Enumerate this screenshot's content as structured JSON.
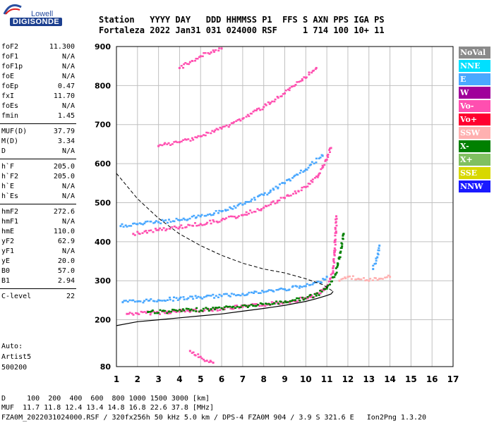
{
  "logo": {
    "top": "Lowell",
    "main": "DIGISONDE"
  },
  "header": {
    "line1": "Station   YYYY DAY   DDD HHMMSS P1  FFS S AXN PPS IGA PS",
    "line2": "Fortaleza 2022 Jan31 031 024000 RSF     1 714 100 10+ 11"
  },
  "params": [
    {
      "k": "foF2",
      "v": "11.300"
    },
    {
      "k": "foF1",
      "v": "N/A"
    },
    {
      "k": "foF1p",
      "v": "N/A"
    },
    {
      "k": "foE",
      "v": "N/A"
    },
    {
      "k": "foEp",
      "v": "0.47"
    },
    {
      "k": "fxI",
      "v": "11.70"
    },
    {
      "k": "foEs",
      "v": "N/A"
    },
    {
      "k": "fmin",
      "v": "1.45"
    },
    {
      "k": "MUF(D)",
      "v": "37.79"
    },
    {
      "k": "M(D)",
      "v": "3.34"
    },
    {
      "k": "D",
      "v": "N/A"
    },
    {
      "k": "h`F",
      "v": "205.0"
    },
    {
      "k": "h`F2",
      "v": "205.0"
    },
    {
      "k": "h`E",
      "v": "N/A"
    },
    {
      "k": "h`Es",
      "v": "N/A"
    },
    {
      "k": "hmF2",
      "v": "272.6"
    },
    {
      "k": "hmF1",
      "v": "N/A"
    },
    {
      "k": "hmE",
      "v": "110.0"
    },
    {
      "k": "yF2",
      "v": "62.9"
    },
    {
      "k": "yF1",
      "v": "N/A"
    },
    {
      "k": "yE",
      "v": "20.0"
    },
    {
      "k": "B0",
      "v": "57.0"
    },
    {
      "k": "B1",
      "v": "2.94"
    },
    {
      "k": "C-level",
      "v": "22"
    }
  ],
  "auto": {
    "line1": "Auto:",
    "line2": "Artist5",
    "line3": "500200"
  },
  "footer": {
    "line1": "D     100  200  400  600  800 1000 1500 3000 [km]",
    "line2": "MUF  11.7 11.8 12.4 13.4 14.8 16.8 22.6 37.8 [MHz]",
    "line3": "FZA0M_2022031024000.RSF / 320fx256h 50 kHz 5.0 km / DPS-4 FZA0M 904 / 3.9 S 321.6 E   Ion2Png 1.3.20"
  },
  "legend": [
    {
      "label": "NoVal",
      "color": "#8a8a8a"
    },
    {
      "label": "NNE",
      "color": "#00e0ff"
    },
    {
      "label": "E",
      "color": "#4aa8ff"
    },
    {
      "label": "W",
      "color": "#a0009a"
    },
    {
      "label": "Vo-",
      "color": "#ff4fb0"
    },
    {
      "label": "Vo+",
      "color": "#ff0030"
    },
    {
      "label": "SSW",
      "color": "#ffb0b0"
    },
    {
      "label": "X-",
      "color": "#008000"
    },
    {
      "label": "X+",
      "color": "#80c060"
    },
    {
      "label": "SSE",
      "color": "#d8d800"
    },
    {
      "label": "NNW",
      "color": "#1a1aff"
    }
  ],
  "chart_data": {
    "type": "scatter",
    "title": "",
    "xlabel": "",
    "ylabel": "",
    "xlim": [
      1,
      17
    ],
    "ylim": [
      80,
      900
    ],
    "xticks": [
      1,
      2,
      3,
      4,
      5,
      6,
      7,
      8,
      9,
      10,
      11,
      12,
      13,
      14,
      15,
      16,
      17
    ],
    "yticks": [
      80,
      200,
      300,
      400,
      500,
      600,
      700,
      800,
      900
    ],
    "grid": true,
    "series": [
      {
        "color": "#ff4fb0",
        "points": [
          [
            1.5,
            215
          ],
          [
            2,
            216
          ],
          [
            3,
            218
          ],
          [
            4,
            221
          ],
          [
            5,
            224
          ],
          [
            6,
            228
          ],
          [
            7,
            233
          ],
          [
            8,
            238
          ],
          [
            9,
            245
          ],
          [
            10,
            255
          ],
          [
            10.7,
            268
          ],
          [
            11,
            285
          ],
          [
            11.3,
            320
          ],
          [
            11.4,
            400
          ],
          [
            11.45,
            465
          ]
        ]
      },
      {
        "color": "#008000",
        "points": [
          [
            2.5,
            220
          ],
          [
            3.5,
            221
          ],
          [
            4.5,
            224
          ],
          [
            5.5,
            227
          ],
          [
            6.5,
            232
          ],
          [
            7.5,
            236
          ],
          [
            8.5,
            242
          ],
          [
            9.5,
            250
          ],
          [
            10.5,
            262
          ],
          [
            11,
            280
          ],
          [
            11.4,
            315
          ],
          [
            11.6,
            360
          ],
          [
            11.8,
            420
          ]
        ]
      },
      {
        "color": "#4aa8ff",
        "points": [
          [
            1.3,
            245
          ],
          [
            2,
            247
          ],
          [
            3,
            250
          ],
          [
            4,
            254
          ],
          [
            5,
            257
          ],
          [
            6,
            261
          ],
          [
            7,
            266
          ],
          [
            8,
            271
          ],
          [
            9,
            278
          ],
          [
            10,
            286
          ],
          [
            10.7,
            296
          ],
          [
            11,
            310
          ]
        ]
      },
      {
        "color": "#ff4fb0",
        "points": [
          [
            1.8,
            420
          ],
          [
            3,
            430
          ],
          [
            4,
            437
          ],
          [
            5,
            445
          ],
          [
            6,
            455
          ],
          [
            7,
            468
          ],
          [
            8,
            487
          ],
          [
            9,
            512
          ],
          [
            10,
            540
          ],
          [
            10.6,
            570
          ],
          [
            11,
            610
          ],
          [
            11.2,
            640
          ]
        ]
      },
      {
        "color": "#4aa8ff",
        "points": [
          [
            1.2,
            440
          ],
          [
            2,
            445
          ],
          [
            3,
            450
          ],
          [
            4,
            455
          ],
          [
            5,
            465
          ],
          [
            6,
            478
          ],
          [
            7,
            495
          ],
          [
            8,
            520
          ],
          [
            9,
            550
          ],
          [
            10,
            585
          ],
          [
            10.8,
            620
          ]
        ]
      },
      {
        "color": "#ff4fb0",
        "points": [
          [
            3,
            645
          ],
          [
            4,
            655
          ],
          [
            5,
            670
          ],
          [
            6,
            690
          ],
          [
            7,
            715
          ],
          [
            8,
            745
          ],
          [
            9,
            780
          ],
          [
            10,
            820
          ],
          [
            10.5,
            845
          ]
        ]
      },
      {
        "color": "#ff4fb0",
        "points": [
          [
            4,
            845
          ],
          [
            4.5,
            860
          ],
          [
            5,
            875
          ],
          [
            5.5,
            885
          ],
          [
            6,
            895
          ]
        ]
      },
      {
        "color": "#ffb0b0",
        "points": [
          [
            11.6,
            300
          ],
          [
            12,
            310
          ],
          [
            12.5,
            305
          ],
          [
            13,
            300
          ],
          [
            13.5,
            305
          ],
          [
            14,
            310
          ]
        ]
      },
      {
        "color": "#4aa8ff",
        "points": [
          [
            13.2,
            330
          ],
          [
            13.4,
            360
          ],
          [
            13.5,
            390
          ]
        ]
      },
      {
        "color": "#ff4fb0",
        "points": [
          [
            4.5,
            120
          ],
          [
            5,
            105
          ],
          [
            5.3,
            95
          ],
          [
            5.6,
            90
          ]
        ]
      }
    ],
    "profile": [
      [
        1,
        185
      ],
      [
        2,
        195
      ],
      [
        3,
        200
      ],
      [
        4,
        205
      ],
      [
        5,
        210
      ],
      [
        6,
        215
      ],
      [
        7,
        222
      ],
      [
        8,
        229
      ],
      [
        9,
        237
      ],
      [
        10,
        247
      ],
      [
        10.5,
        254
      ],
      [
        11,
        262
      ],
      [
        11.2,
        266
      ],
      [
        11.3,
        272.6
      ]
    ],
    "extrapolation": [
      [
        1,
        575
      ],
      [
        2,
        510
      ],
      [
        3,
        460
      ],
      [
        4,
        420
      ],
      [
        5,
        390
      ],
      [
        6,
        365
      ],
      [
        7,
        345
      ],
      [
        8,
        330
      ],
      [
        9,
        320
      ],
      [
        10,
        305
      ],
      [
        10.8,
        290
      ],
      [
        11.3,
        272.6
      ]
    ]
  }
}
